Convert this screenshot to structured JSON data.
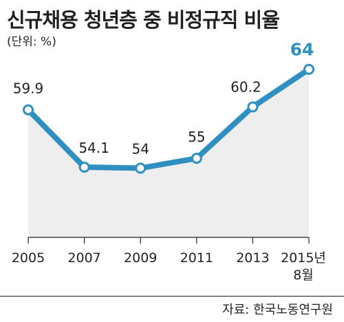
{
  "header": {
    "title": "신규채용 청년층 중 비정규직 비율",
    "unit": "(단위: %)"
  },
  "footer": {
    "source": "자료: 한국노동연구원"
  },
  "colors": {
    "line": "#2f8fc0",
    "area": "#eeeeee",
    "last_label": "#2f8fc0",
    "text": "#231f20"
  },
  "chart_data": {
    "type": "line",
    "title": "신규채용 청년층 중 비정규직 비율",
    "ylabel": "(단위: %)",
    "categories": [
      "2005",
      "2007",
      "2009",
      "2011",
      "2013",
      "2015년 8월"
    ],
    "series": [
      {
        "values": [
          59.9,
          54.1,
          54,
          55,
          60.2,
          64
        ],
        "labels": [
          "59.9",
          "54.1",
          "54",
          "55",
          "60.2",
          "64"
        ]
      }
    ],
    "ylim": [
      47,
      66
    ],
    "grid": false,
    "area_fill": true
  }
}
